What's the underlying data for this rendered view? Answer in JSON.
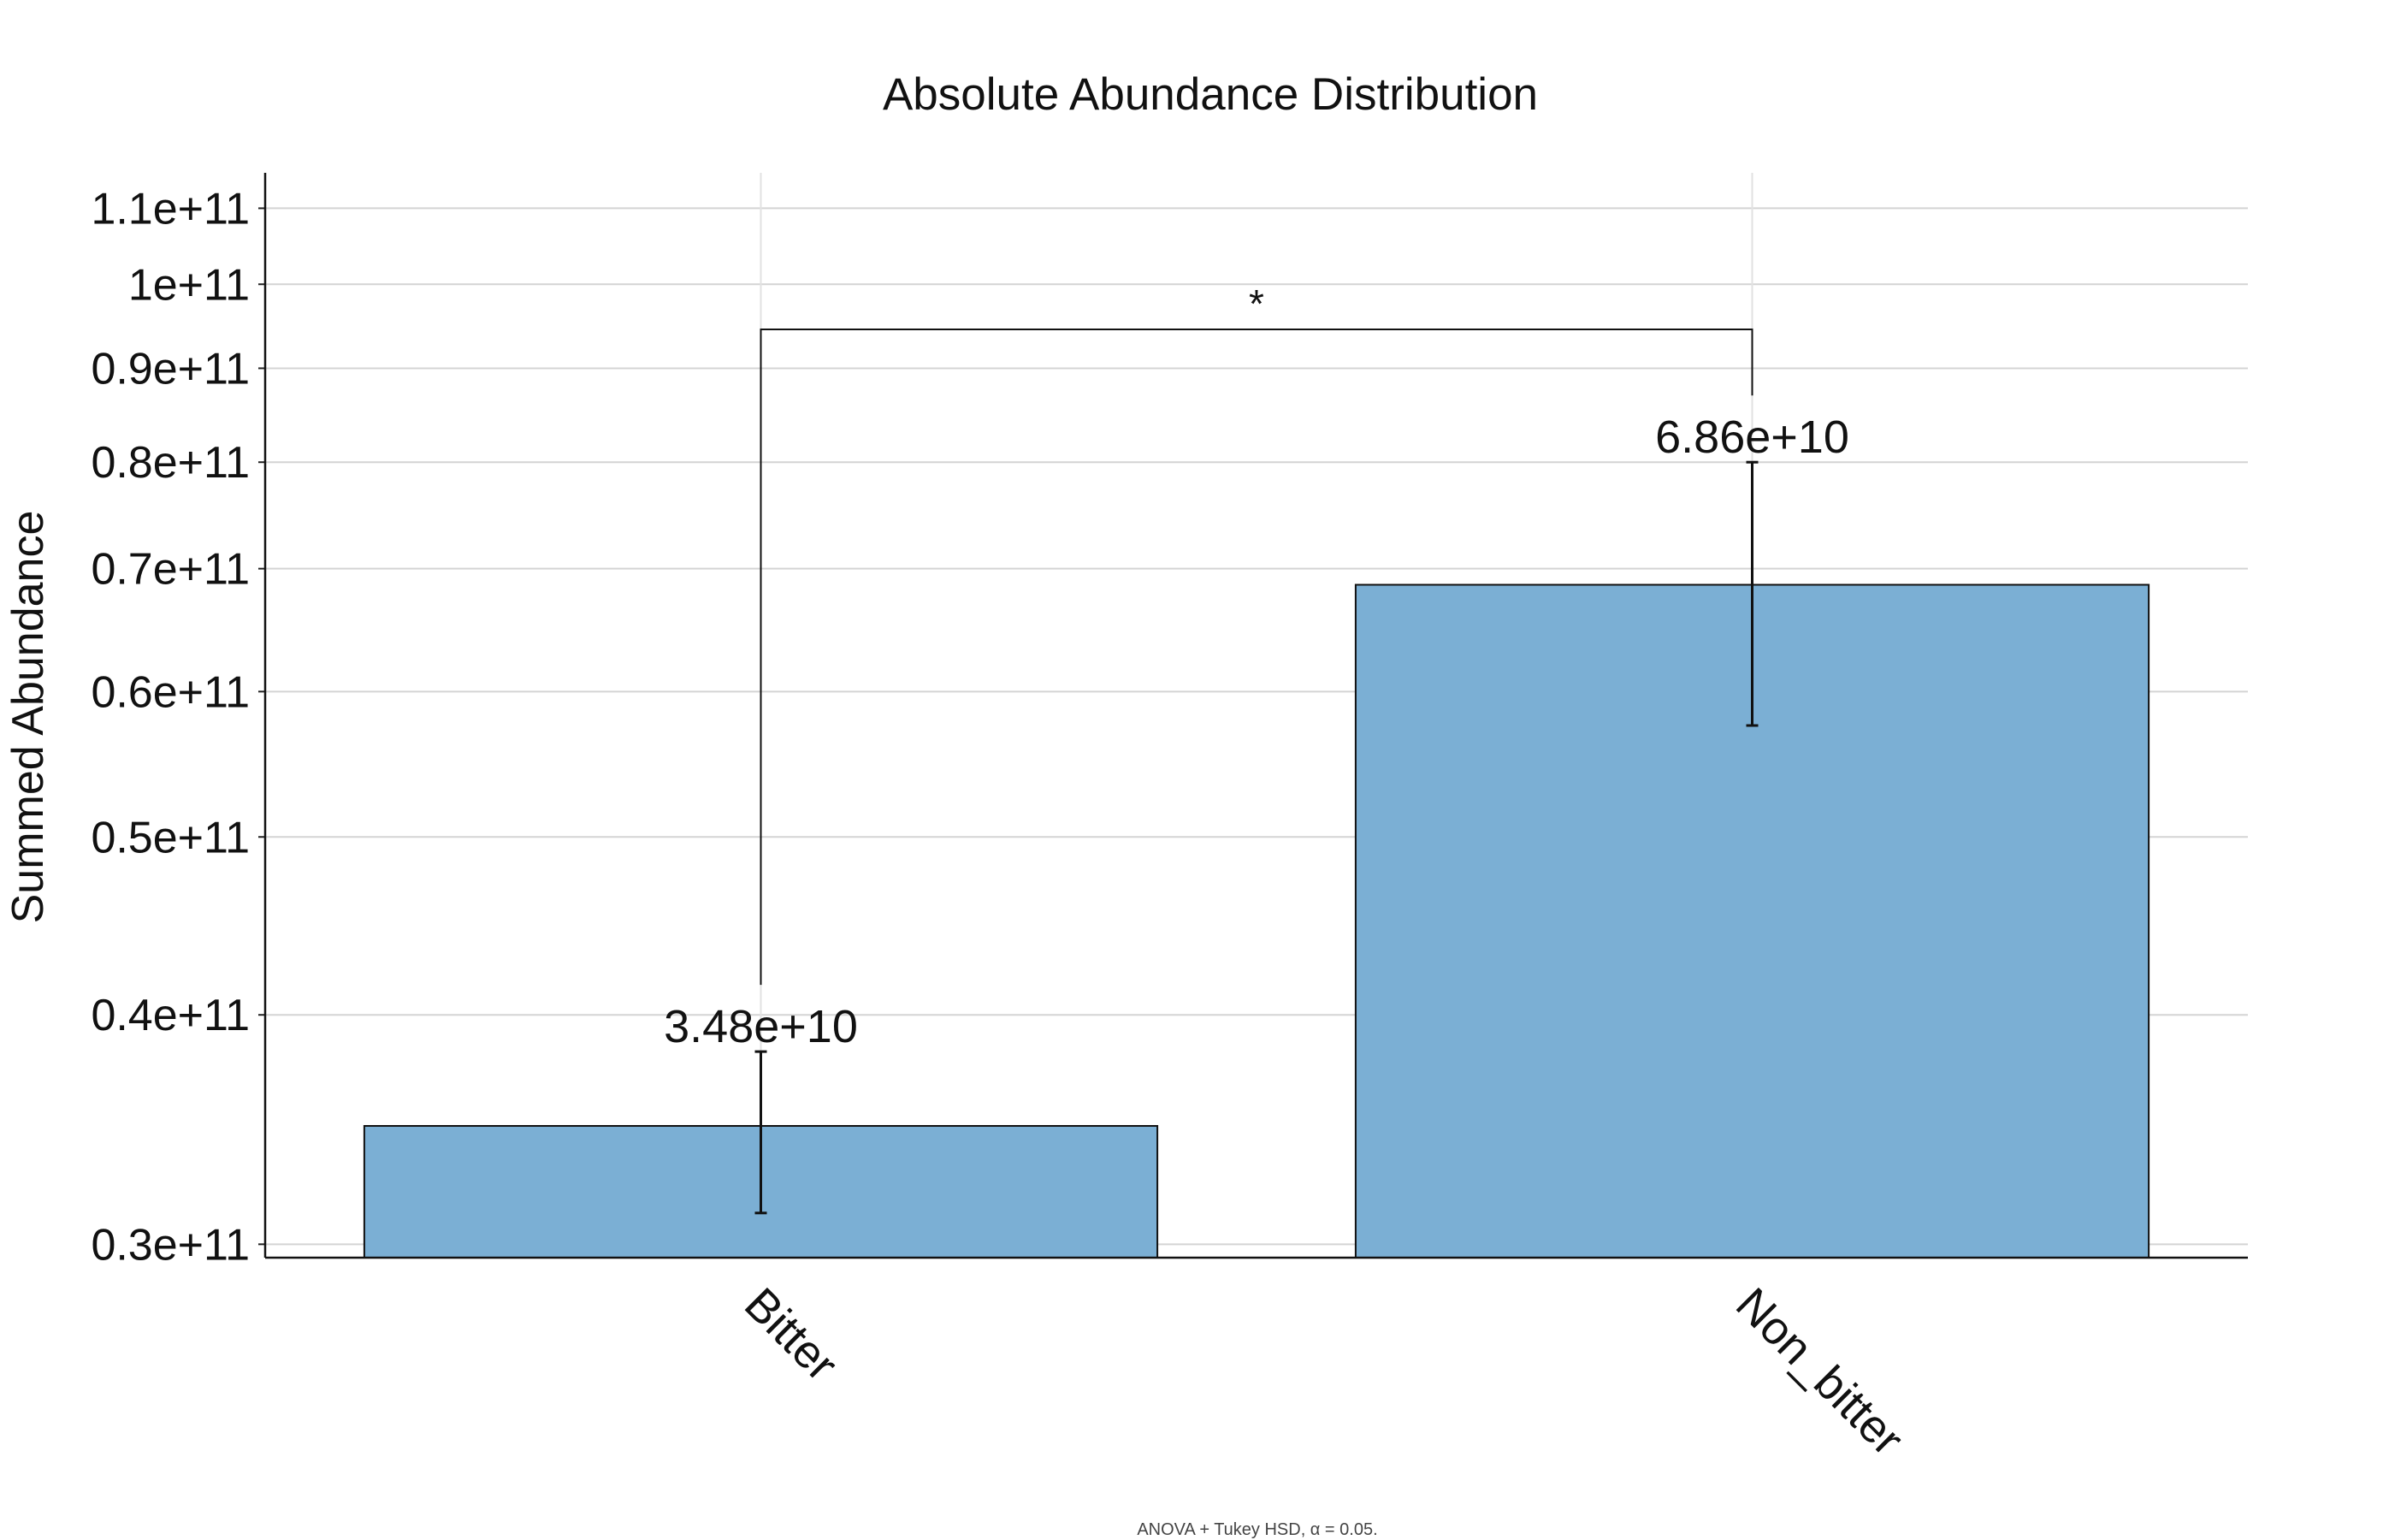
{
  "chart_data": {
    "type": "bar",
    "title": "Absolute Abundance Distribution",
    "xlabel": "",
    "ylabel": "Summed Abundance",
    "y_scale": "log",
    "ylim": [
      29500000000,
      115000000000
    ],
    "yticks": [
      30000000000,
      40000000000,
      50000000000,
      60000000000,
      70000000000,
      80000000000,
      90000000000,
      100000000000,
      110000000000
    ],
    "ytick_labels": [
      "0.3e+11",
      "0.4e+11",
      "0.5e+11",
      "0.6e+11",
      "0.7e+11",
      "0.8e+11",
      "0.9e+11",
      "1e+11",
      "1.1e+11"
    ],
    "categories": [
      "Bitter",
      "Non_bitter"
    ],
    "values": [
      34800000000,
      68600000000
    ],
    "value_labels": [
      "3.48e+10",
      "6.86e+10"
    ],
    "error_low": [
      31200000000,
      57500000000
    ],
    "error_high": [
      38200000000,
      80000000000
    ],
    "grid": true,
    "bar_color": "#7bafd4",
    "significance": {
      "groups": [
        "Bitter",
        "Non_bitter"
      ],
      "label": "*",
      "bracket_y": 94500000000
    },
    "note": "ANOVA + Tukey HSD, α = 0.05."
  }
}
